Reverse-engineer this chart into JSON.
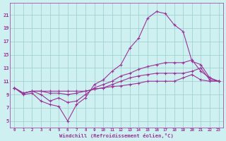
{
  "xlabel": "Windchill (Refroidissement éolien,°C)",
  "bg_color": "#cff0f0",
  "grid_color": "#99cccc",
  "line_color": "#993399",
  "x_ticks": [
    0,
    1,
    2,
    3,
    4,
    5,
    6,
    7,
    8,
    9,
    10,
    11,
    12,
    13,
    14,
    15,
    16,
    17,
    18,
    19,
    20,
    21,
    22,
    23
  ],
  "y_ticks": [
    5,
    7,
    9,
    11,
    13,
    15,
    17,
    19,
    21
  ],
  "ylim": [
    4.0,
    22.8
  ],
  "xlim": [
    -0.5,
    23.5
  ],
  "series": [
    [
      10.0,
      9.0,
      9.2,
      8.0,
      7.5,
      7.2,
      5.0,
      7.5,
      8.5,
      10.5,
      11.2,
      12.5,
      13.5,
      16.0,
      17.5,
      20.5,
      21.5,
      21.2,
      19.5,
      18.5,
      14.0,
      13.5,
      11.5,
      11.0
    ],
    [
      10.0,
      9.2,
      9.5,
      9.0,
      8.0,
      8.5,
      7.8,
      8.0,
      9.0,
      10.0,
      10.5,
      11.0,
      11.8,
      12.2,
      12.8,
      13.2,
      13.5,
      13.8,
      13.8,
      13.8,
      14.2,
      12.5,
      11.5,
      11.0
    ],
    [
      10.0,
      9.2,
      9.5,
      9.5,
      9.2,
      9.2,
      9.0,
      9.2,
      9.5,
      9.8,
      10.0,
      10.5,
      11.0,
      11.5,
      11.8,
      12.0,
      12.2,
      12.2,
      12.2,
      12.2,
      12.5,
      13.0,
      11.2,
      11.0
    ],
    [
      10.0,
      9.2,
      9.5,
      9.5,
      9.5,
      9.5,
      9.5,
      9.5,
      9.5,
      9.8,
      10.0,
      10.2,
      10.3,
      10.5,
      10.7,
      11.0,
      11.0,
      11.0,
      11.0,
      11.5,
      12.0,
      11.2,
      11.0,
      11.0
    ]
  ]
}
